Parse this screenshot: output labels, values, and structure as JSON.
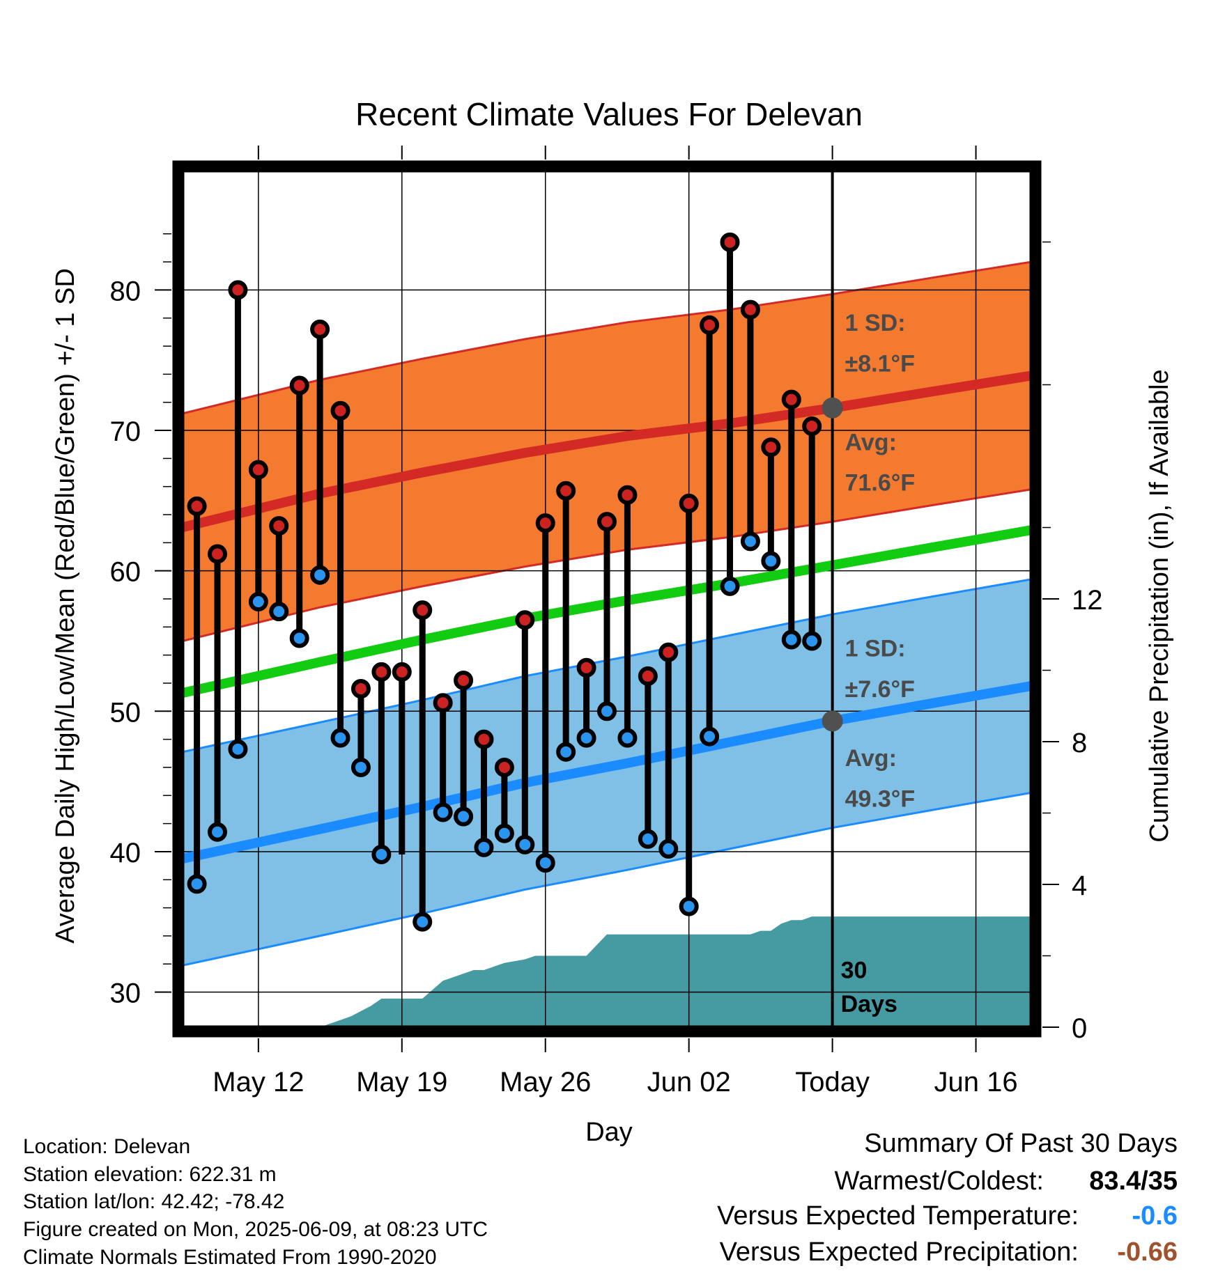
{
  "chart_data": {
    "type": "line",
    "title": "Recent Climate Values For Delevan",
    "xlabel": "Day",
    "ylabel": "Average Daily High/Low/Mean (Red/Blue/Green) +/- 1 SD",
    "y2label": "Cumulative Precipitation (in), If Available",
    "x_ticks": [
      "May 12",
      "May 19",
      "May 26",
      "Jun 02",
      "Today",
      "Jun 16"
    ],
    "x_tick_days": [
      12,
      19,
      26,
      33,
      40,
      47
    ],
    "x_range": [
      8.3,
      49.7
    ],
    "ylim": [
      27.5,
      88.5
    ],
    "y_ticks": [
      30,
      40,
      50,
      60,
      70,
      80
    ],
    "y2lim": [
      0,
      24
    ],
    "y2_ticks": [
      0,
      4,
      8,
      12
    ],
    "grid": true,
    "today_day": 40,
    "days": [
      9,
      10,
      11,
      12,
      13,
      14,
      15,
      16,
      17,
      18,
      19,
      20,
      21,
      22,
      23,
      24,
      25,
      26,
      27,
      28,
      29,
      30,
      31,
      32,
      33,
      34,
      35,
      36,
      37,
      38,
      39
    ],
    "daily_high": [
      64.6,
      61.2,
      80.0,
      67.2,
      63.2,
      73.2,
      77.2,
      71.4,
      51.6,
      52.8,
      57.2,
      50.6,
      52.2,
      48.0,
      46.0,
      56.5,
      63.4,
      65.7,
      53.1,
      63.5,
      65.4,
      52.5,
      54.2,
      64.8,
      77.5,
      83.4,
      78.6,
      68.8,
      72.2,
      70.3
    ],
    "daily_high_days": [
      9,
      10,
      11,
      12,
      13,
      14,
      15,
      16,
      17,
      18,
      20,
      21,
      22,
      23,
      24,
      25,
      26,
      27,
      28,
      29,
      30,
      31,
      32,
      33,
      34,
      35,
      36,
      37,
      38,
      39
    ],
    "daily_low": [
      37.7,
      41.4,
      47.3,
      57.8,
      57.1,
      55.2,
      59.7,
      48.1,
      46.0,
      39.8,
      35.0,
      42.8,
      42.5,
      40.3,
      41.3,
      40.5,
      39.2,
      47.1,
      48.1,
      50.0,
      48.1,
      40.9,
      40.2,
      36.1,
      48.2,
      58.9,
      62.1,
      60.7,
      55.1,
      55.0
    ],
    "daily_low_days": [
      9,
      10,
      11,
      12,
      13,
      14,
      15,
      16,
      17,
      18,
      20,
      21,
      22,
      23,
      24,
      25,
      26,
      27,
      28,
      29,
      30,
      31,
      32,
      33,
      34,
      35,
      36,
      37,
      38,
      39
    ],
    "extra_high": {
      "day": 19,
      "high": 52.8
    },
    "normals": {
      "days": [
        8.3,
        15,
        20,
        25,
        30,
        35,
        40,
        45,
        49.7
      ],
      "avg_high": [
        63.1,
        65.5,
        67.0,
        68.4,
        69.6,
        70.5,
        71.6,
        72.8,
        73.9
      ],
      "avg_low": [
        39.5,
        41.6,
        43.2,
        44.9,
        46.3,
        47.8,
        49.3,
        50.6,
        51.8
      ],
      "avg_mean": [
        51.3,
        53.5,
        55.1,
        56.6,
        57.9,
        59.1,
        60.4,
        61.7,
        62.9
      ],
      "high_sd": 8.1,
      "low_sd": 7.6
    },
    "precip_days": [
      8.3,
      15,
      16.5,
      17.5,
      18,
      19,
      19.5,
      20,
      21,
      22,
      22.5,
      23,
      24,
      25,
      25.5,
      26,
      27,
      27.5,
      28,
      28.5,
      29,
      30,
      31,
      33,
      35,
      36,
      36.5,
      37,
      37.5,
      38,
      38.5,
      39,
      40,
      49.7
    ],
    "precip_cumulative": [
      0,
      0,
      0.3,
      0.6,
      0.8,
      0.8,
      0.8,
      0.8,
      1.3,
      1.5,
      1.6,
      1.6,
      1.8,
      1.9,
      2.0,
      2.0,
      2.0,
      2.0,
      2.0,
      2.3,
      2.6,
      2.6,
      2.6,
      2.6,
      2.6,
      2.6,
      2.7,
      2.7,
      2.9,
      3.0,
      3.0,
      3.1,
      3.1,
      3.1
    ],
    "annotations": {
      "high_sd_label": "1 SD:",
      "high_sd_value": "±8.1°F",
      "high_avg_label": "Avg:",
      "high_avg_value": "71.6°F",
      "low_sd_label": "1 SD:",
      "low_sd_value": "±7.6°F",
      "low_avg_label": "Avg:",
      "low_avg_value": "49.3°F",
      "high_avg": 71.6,
      "low_avg": 49.3,
      "days_label_1": "30",
      "days_label_2": "Days"
    },
    "colors": {
      "high_band": "#f47a30",
      "high_line": "#d42a26",
      "low_band": "#80bfe6",
      "low_line": "#1a8cff",
      "mean_line": "#11cc11",
      "precip": "#469aa2",
      "high_marker": "#cc2222",
      "low_marker": "#2a94ee",
      "avg_marker": "#505050"
    }
  },
  "info": {
    "location": "Location: Delevan",
    "elevation": "Station elevation: 622.31 m",
    "latlon": "Station lat/lon: 42.42; -78.42",
    "created": "Figure created on Mon, 2025-06-09, at 08:23 UTC",
    "normals": "Climate Normals Estimated From 1990-2020"
  },
  "summary": {
    "title": "Summary Of Past 30 Days",
    "warm_label": "Warmest/Coldest:",
    "warm_value": "83.4/35",
    "temp_label": "Versus Expected Temperature:",
    "temp_value": "-0.6",
    "temp_color": "#1a8cff",
    "precip_label": "Versus Expected Precipitation:",
    "precip_value": "-0.66",
    "precip_color": "#a0522d"
  }
}
